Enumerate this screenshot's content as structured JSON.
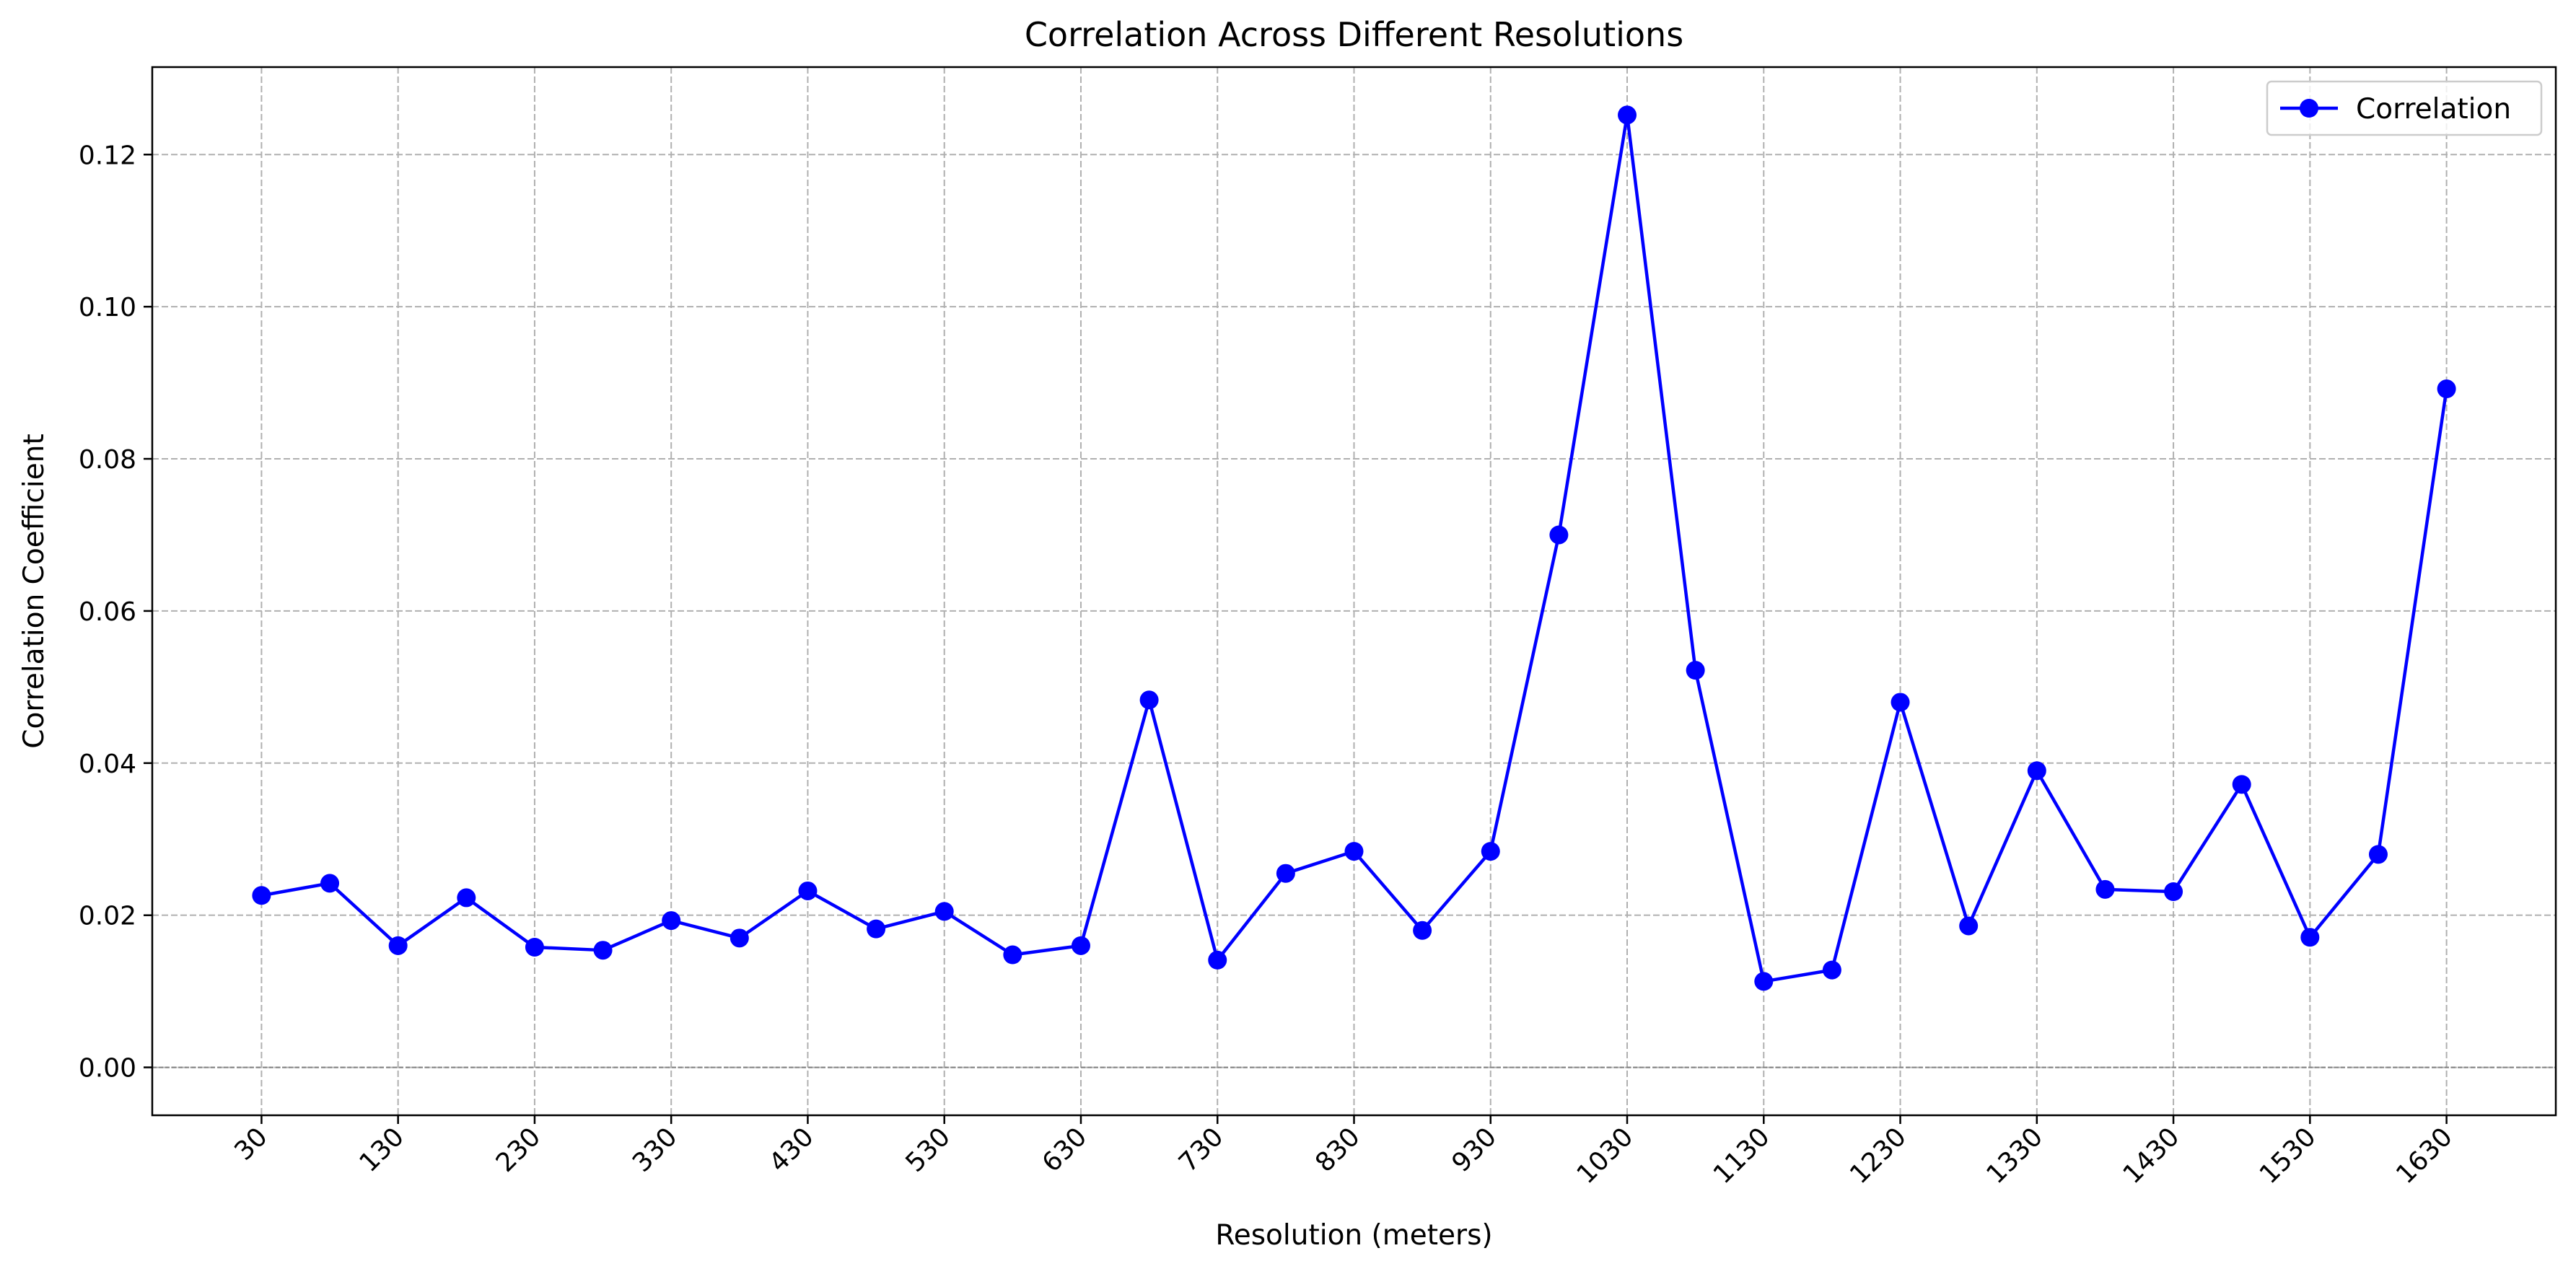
{
  "chart_data": {
    "type": "line",
    "title": "Correlation Across Different Resolutions",
    "xlabel": "Resolution (meters)",
    "ylabel": "Correlation Coefficient",
    "x": [
      30,
      80,
      130,
      180,
      230,
      280,
      330,
      380,
      430,
      480,
      530,
      580,
      630,
      680,
      730,
      780,
      830,
      880,
      930,
      980,
      1030,
      1080,
      1130,
      1180,
      1230,
      1280,
      1330,
      1380,
      1430,
      1480,
      1530,
      1580,
      1630
    ],
    "series": [
      {
        "name": "Correlation",
        "color": "#0000ff",
        "marker": "circle",
        "values": [
          0.0226,
          0.0242,
          0.016,
          0.0223,
          0.0158,
          0.0154,
          0.0193,
          0.017,
          0.0232,
          0.0182,
          0.0205,
          0.0148,
          0.016,
          0.0483,
          0.0141,
          0.0255,
          0.0284,
          0.018,
          0.0284,
          0.07,
          0.1252,
          0.0522,
          0.0113,
          0.0128,
          0.048,
          0.0186,
          0.039,
          0.0234,
          0.0231,
          0.0372,
          0.0171,
          0.028,
          0.0892
        ]
      }
    ],
    "xticks": [
      30,
      130,
      230,
      330,
      430,
      530,
      630,
      730,
      830,
      930,
      1030,
      1130,
      1230,
      1330,
      1430,
      1530,
      1630
    ],
    "xtick_labels": [
      "30",
      "130",
      "230",
      "330",
      "430",
      "530",
      "630",
      "730",
      "830",
      "930",
      "1030",
      "1130",
      "1230",
      "1330",
      "1430",
      "1530",
      "1630"
    ],
    "yticks": [
      0.0,
      0.02,
      0.04,
      0.06,
      0.08,
      0.1,
      0.12
    ],
    "ytick_labels": [
      "0.00",
      "0.02",
      "0.04",
      "0.06",
      "0.08",
      "0.10",
      "0.12"
    ],
    "xlim": [
      -50,
      1710
    ],
    "ylim": [
      -0.0063,
      0.1315
    ],
    "grid": true,
    "grid_style": "dashed",
    "zero_line": true,
    "legend_position": "top-right",
    "colors": {
      "line": "#0000ff",
      "grid": "#b0b0b0",
      "zero_line": "#808080"
    }
  }
}
